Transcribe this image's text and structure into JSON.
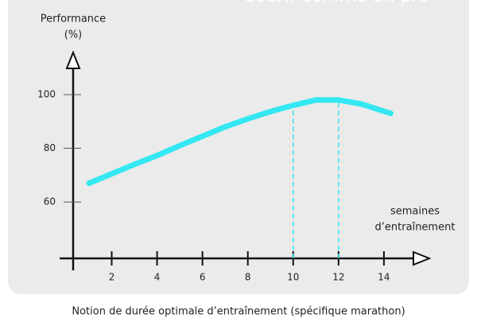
{
  "chart_data": {
    "type": "line",
    "title": "« Courir comme un pro »",
    "y_label": [
      "Performance",
      "(%)"
    ],
    "x_label": [
      "semaines",
      "d’entraînement"
    ],
    "caption": "Notion de durée optimale d’entraînement (spécifique marathon)",
    "x": [
      1,
      2,
      3,
      4,
      5,
      6,
      7,
      8,
      9,
      10,
      11,
      12,
      13,
      14.3
    ],
    "series": [
      {
        "name": "Performance",
        "color": "#33e8f2",
        "values": [
          67,
          70.5,
          74,
          77.3,
          81,
          84.5,
          88,
          91,
          93.7,
          96,
          98,
          98,
          96.5,
          93
        ]
      }
    ],
    "optimal_weeks": [
      10,
      12
    ],
    "xlim": [
      0.3,
      16
    ],
    "ylim": [
      39,
      116
    ],
    "xticks": [
      2,
      4,
      6,
      8,
      10,
      12,
      14
    ],
    "yticks": [
      60,
      80,
      100
    ]
  }
}
